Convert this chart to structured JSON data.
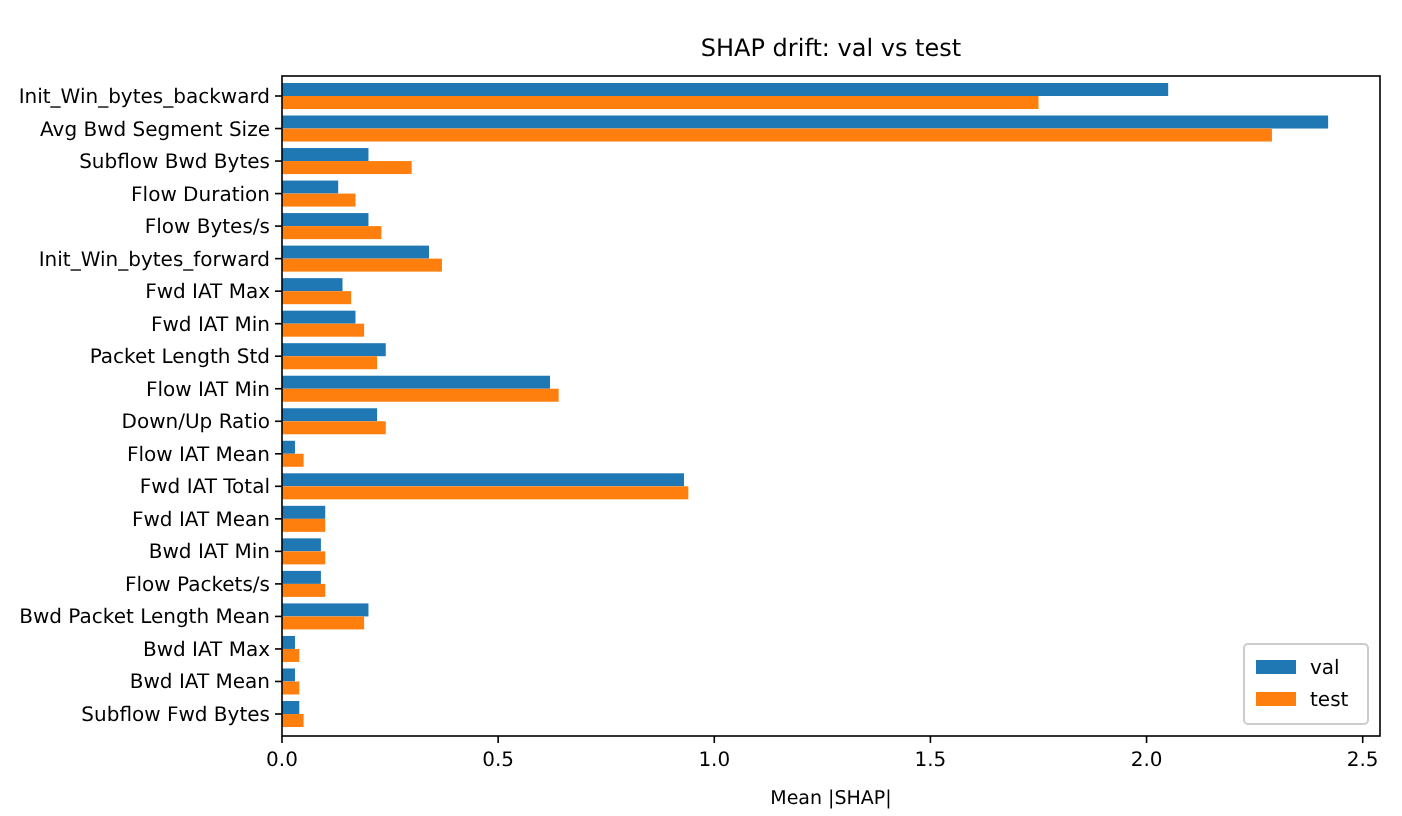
{
  "chart_data": {
    "type": "bar",
    "orientation": "horizontal",
    "title": "SHAP drift: val vs test",
    "xlabel": "Mean |SHAP|",
    "categories": [
      "Init_Win_bytes_backward",
      "Avg Bwd Segment Size",
      "Subflow Bwd Bytes",
      "Flow Duration",
      "Flow Bytes/s",
      "Init_Win_bytes_forward",
      "Fwd IAT Max",
      "Fwd IAT Min",
      "Packet Length Std",
      "Flow IAT Min",
      "Down/Up Ratio",
      "Flow IAT Mean",
      "Fwd IAT Total",
      "Fwd IAT Mean",
      "Bwd IAT Min",
      "Flow Packets/s",
      "Bwd Packet Length Mean",
      "Bwd IAT Max",
      "Bwd IAT Mean",
      "Subflow Fwd Bytes"
    ],
    "series": [
      {
        "name": "val",
        "color": "#1f77b4",
        "values": [
          2.05,
          2.42,
          0.2,
          0.13,
          0.2,
          0.34,
          0.14,
          0.17,
          0.24,
          0.62,
          0.22,
          0.03,
          0.93,
          0.1,
          0.09,
          0.09,
          0.2,
          0.03,
          0.03,
          0.04
        ]
      },
      {
        "name": "test",
        "color": "#ff7f0e",
        "values": [
          1.75,
          2.29,
          0.3,
          0.17,
          0.23,
          0.37,
          0.16,
          0.19,
          0.22,
          0.64,
          0.24,
          0.05,
          0.94,
          0.1,
          0.1,
          0.1,
          0.19,
          0.04,
          0.04,
          0.05
        ]
      }
    ],
    "xlim": [
      0,
      2.54
    ],
    "xticks": [
      {
        "value": 0,
        "label": "0.0"
      },
      0.5,
      {
        "value": 1,
        "label": "1.0"
      },
      1.5,
      {
        "value": 2,
        "label": "2.0"
      },
      2.5
    ],
    "grid": false,
    "legend": "bottom right"
  }
}
